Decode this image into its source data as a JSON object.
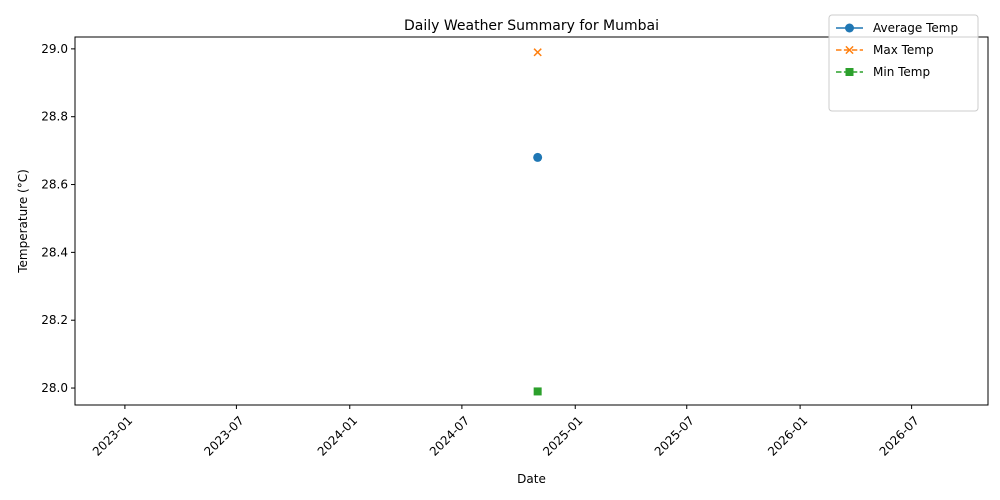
{
  "chart_data": {
    "type": "line",
    "title": "Daily Weather Summary for Mumbai",
    "xlabel": "Date",
    "ylabel": "Temperature (°C)",
    "x_axis": {
      "type": "date",
      "range": [
        "2022-10-12",
        "2026-11-02"
      ],
      "ticks": [
        "2023-01-01",
        "2023-07-01",
        "2024-01-01",
        "2024-07-01",
        "2025-01-01",
        "2025-07-01",
        "2026-01-01",
        "2026-07-01"
      ],
      "tick_labels": [
        "2023-01",
        "2023-07",
        "2024-01",
        "2024-07",
        "2025-01",
        "2025-07",
        "2026-01",
        "2026-07"
      ],
      "tick_label_rotation": 45
    },
    "y_axis": {
      "range": [
        27.95,
        29.035
      ],
      "ticks": [
        28.0,
        28.2,
        28.4,
        28.6,
        28.8,
        29.0
      ],
      "tick_labels": [
        "28.0",
        "28.2",
        "28.4",
        "28.6",
        "28.8",
        "29.0"
      ]
    },
    "grid": false,
    "legend_position": "top-right",
    "series": [
      {
        "name": "Average Temp",
        "color": "#1f77b4",
        "marker": "circle",
        "line_style": "solid",
        "points": [
          {
            "x": "2024-11-01",
            "y": 28.68
          }
        ]
      },
      {
        "name": "Max Temp",
        "color": "#ff7f0e",
        "marker": "x",
        "line_style": "dashed",
        "points": [
          {
            "x": "2024-11-01",
            "y": 28.99
          }
        ]
      },
      {
        "name": "Min Temp",
        "color": "#2ca02c",
        "marker": "square",
        "line_style": "dashed",
        "points": [
          {
            "x": "2024-11-01",
            "y": 27.99
          }
        ]
      }
    ]
  }
}
